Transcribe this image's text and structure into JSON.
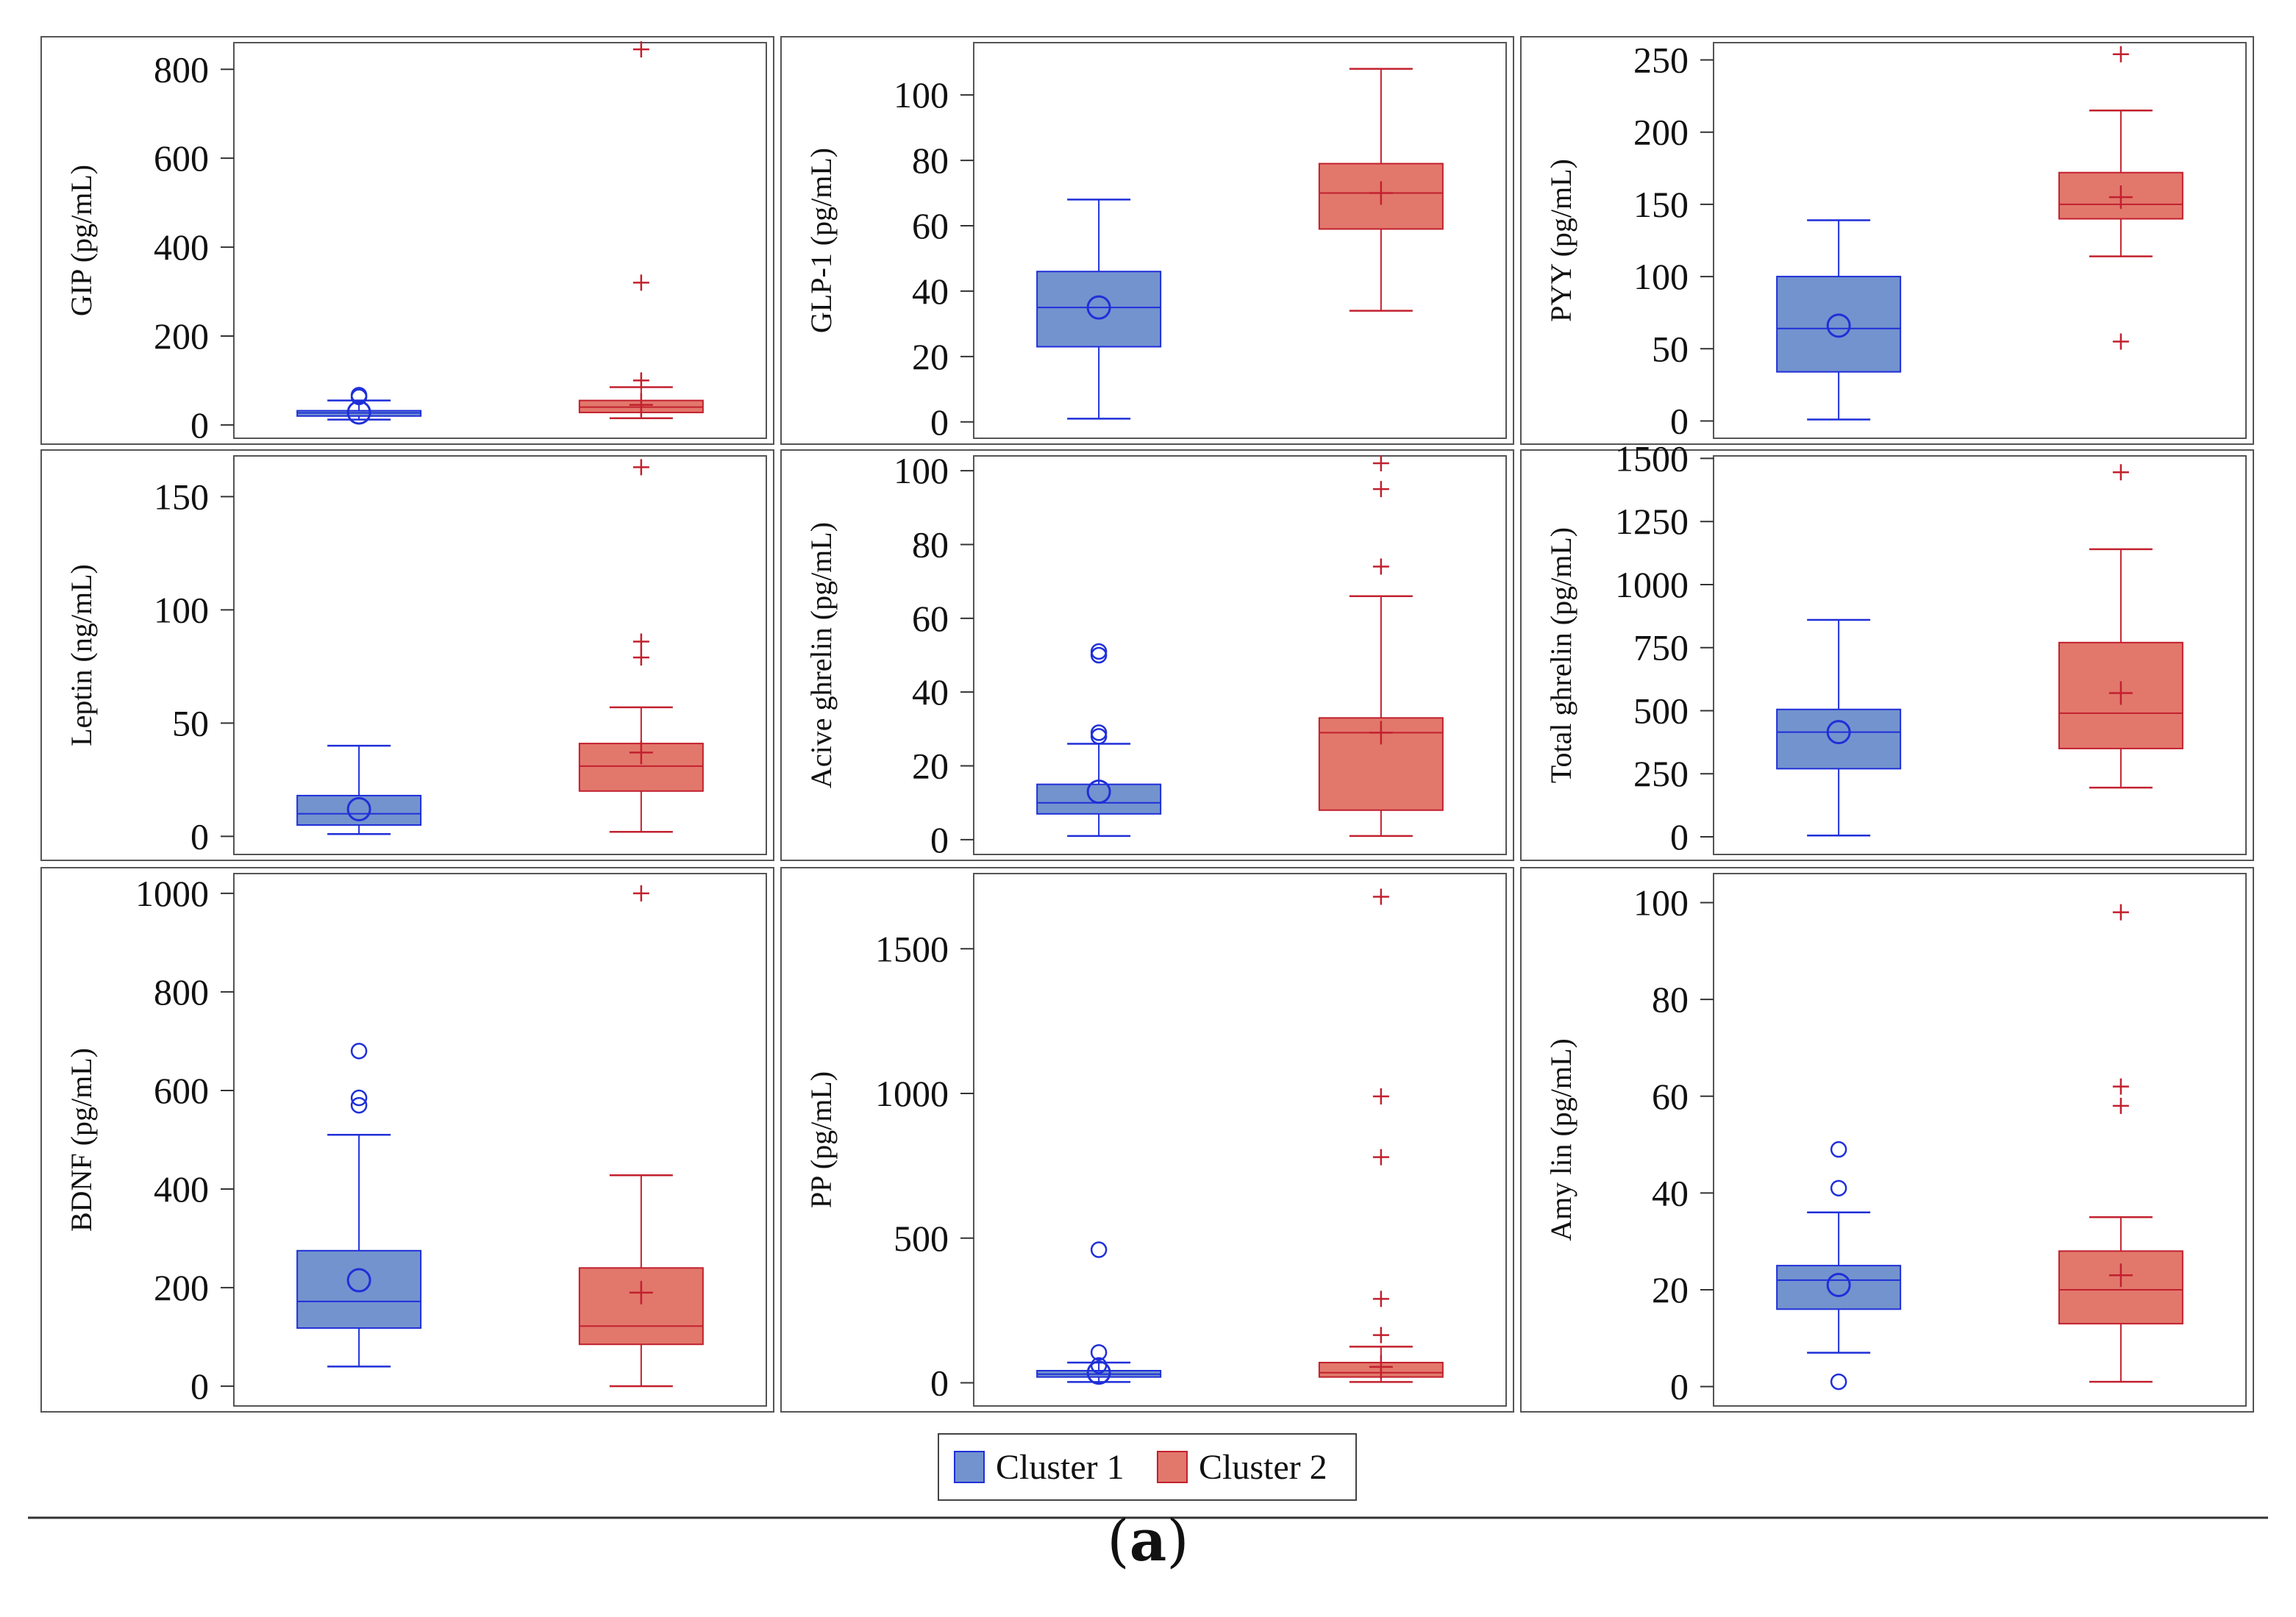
{
  "colors": {
    "cluster1": "#7393CE",
    "cluster1_line": "#1F2FD8",
    "cluster2": "#E2786C",
    "cluster2_line": "#C2202E",
    "frame": "#555555",
    "text": "#111111"
  },
  "legend": {
    "items": [
      "Cluster 1",
      "Cluster 2"
    ]
  },
  "caption": {
    "open": "(",
    "label": "a",
    "close": ")"
  },
  "chart_data": [
    {
      "type": "box",
      "title": "GIP",
      "ylabel": "GIP (pg/mL)",
      "ylim": [
        -30,
        860
      ],
      "ticks": [
        0,
        200,
        400,
        600,
        800
      ],
      "series": [
        {
          "name": "Cluster 1",
          "min": 12,
          "q1": 20,
          "median": 27,
          "q3": 32,
          "max": 55,
          "mean": 28,
          "outliers": [
            63,
            67
          ]
        },
        {
          "name": "Cluster 2",
          "min": 15,
          "q1": 28,
          "median": 40,
          "q3": 55,
          "max": 85,
          "mean": 45,
          "outliers": [
            100,
            320,
            845
          ]
        }
      ]
    },
    {
      "type": "box",
      "title": "GLP-1",
      "ylabel": "GLP-1 (pg/mL)",
      "ylim": [
        -5,
        116
      ],
      "ticks": [
        0,
        20,
        40,
        60,
        80,
        100
      ],
      "series": [
        {
          "name": "Cluster 1",
          "min": 1,
          "q1": 23,
          "median": 35,
          "q3": 46,
          "max": 68,
          "mean": 35,
          "outliers": []
        },
        {
          "name": "Cluster 2",
          "min": 34,
          "q1": 59,
          "median": 70,
          "q3": 79,
          "max": 108,
          "mean": 70,
          "outliers": []
        }
      ]
    },
    {
      "type": "box",
      "title": "PYY",
      "ylabel": "PYY (pg/mL)",
      "ylim": [
        -12,
        262
      ],
      "ticks": [
        0,
        50,
        100,
        150,
        200,
        250
      ],
      "series": [
        {
          "name": "Cluster 1",
          "min": 1,
          "q1": 34,
          "median": 64,
          "q3": 100,
          "max": 139,
          "mean": 66,
          "outliers": []
        },
        {
          "name": "Cluster 2",
          "min": 114,
          "q1": 140,
          "median": 150,
          "q3": 172,
          "max": 215,
          "mean": 155,
          "outliers": [
            55,
            254
          ]
        }
      ]
    },
    {
      "type": "box",
      "title": "Leptin",
      "ylabel": "Leptin (ng/mL)",
      "ylim": [
        -8,
        168
      ],
      "ticks": [
        0,
        50,
        100,
        150
      ],
      "series": [
        {
          "name": "Cluster 1",
          "min": 1,
          "q1": 5,
          "median": 10,
          "q3": 18,
          "max": 40,
          "mean": 12,
          "outliers": []
        },
        {
          "name": "Cluster 2",
          "min": 2,
          "q1": 20,
          "median": 31,
          "q3": 41,
          "max": 57,
          "mean": 37,
          "outliers": [
            79,
            86,
            163
          ]
        }
      ]
    },
    {
      "type": "box",
      "title": "Acive ghrelin",
      "ylabel": "Acive ghrelin (pg/mL)",
      "ylim": [
        -4,
        104
      ],
      "ticks": [
        0,
        20,
        40,
        60,
        80,
        100
      ],
      "series": [
        {
          "name": "Cluster 1",
          "min": 1,
          "q1": 7,
          "median": 10,
          "q3": 15,
          "max": 26,
          "mean": 13,
          "outliers": [
            28,
            29,
            50,
            51
          ]
        },
        {
          "name": "Cluster 2",
          "min": 1,
          "q1": 8,
          "median": 29,
          "q3": 33,
          "max": 66,
          "mean": 29,
          "outliers": [
            74,
            95,
            102
          ]
        }
      ]
    },
    {
      "type": "box",
      "title": "Total ghrelin",
      "ylabel": "Total ghrelin (pg/mL)",
      "ylim": [
        -70,
        1510
      ],
      "ticks": [
        0,
        250,
        500,
        750,
        1000,
        1250,
        1500
      ],
      "series": [
        {
          "name": "Cluster 1",
          "min": 5,
          "q1": 270,
          "median": 415,
          "q3": 505,
          "max": 860,
          "mean": 415,
          "outliers": []
        },
        {
          "name": "Cluster 2",
          "min": 195,
          "q1": 350,
          "median": 490,
          "q3": 770,
          "max": 1140,
          "mean": 570,
          "outliers": [
            1445
          ]
        }
      ]
    },
    {
      "type": "box",
      "title": "BDNF",
      "ylabel": "BDNF (pg/mL)",
      "ylim": [
        -40,
        1040
      ],
      "ticks": [
        0,
        200,
        400,
        600,
        800,
        1000
      ],
      "series": [
        {
          "name": "Cluster 1",
          "min": 40,
          "q1": 118,
          "median": 172,
          "q3": 275,
          "max": 510,
          "mean": 215,
          "outliers": [
            570,
            585,
            680
          ]
        },
        {
          "name": "Cluster 2",
          "min": 0,
          "q1": 85,
          "median": 122,
          "q3": 240,
          "max": 428,
          "mean": 190,
          "outliers": [
            1000
          ]
        }
      ]
    },
    {
      "type": "box",
      "title": "PP",
      "ylabel": "PP (pg/mL)",
      "ylim": [
        -80,
        1760
      ],
      "ticks": [
        0,
        500,
        1000,
        1500
      ],
      "series": [
        {
          "name": "Cluster 1",
          "min": 3,
          "q1": 20,
          "median": 30,
          "q3": 42,
          "max": 70,
          "mean": 35,
          "outliers": [
            60,
            105,
            460
          ]
        },
        {
          "name": "Cluster 2",
          "min": 3,
          "q1": 20,
          "median": 35,
          "q3": 70,
          "max": 125,
          "mean": 55,
          "outliers": [
            165,
            290,
            780,
            990,
            1680
          ]
        }
      ]
    },
    {
      "type": "box",
      "title": "Amylin",
      "ylabel": "Amy lin (pg/mL)",
      "ylim": [
        -4,
        106
      ],
      "ticks": [
        0,
        20,
        40,
        60,
        80,
        100
      ],
      "series": [
        {
          "name": "Cluster 1",
          "min": 7,
          "q1": 16,
          "median": 22,
          "q3": 25,
          "max": 36,
          "mean": 21,
          "outliers": [
            1,
            41,
            49
          ]
        },
        {
          "name": "Cluster 2",
          "min": 1,
          "q1": 13,
          "median": 20,
          "q3": 28,
          "max": 35,
          "mean": 23,
          "outliers": [
            58,
            62,
            98
          ]
        }
      ]
    }
  ]
}
